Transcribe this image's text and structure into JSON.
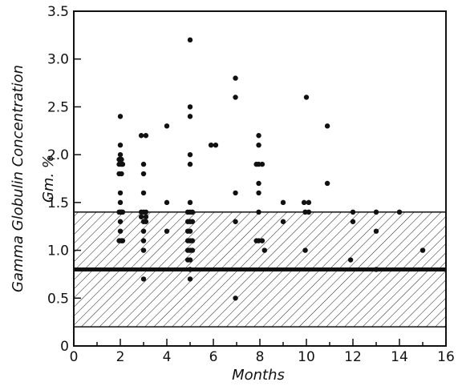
{
  "chart_data": {
    "type": "scatter",
    "xlabel": "Months",
    "ylabel": "Gamma Globulin Concentration",
    "ylabel_unit": "Gm. %",
    "xlim": [
      0,
      16
    ],
    "ylim": [
      0,
      3.5
    ],
    "x_ticks": [
      "0",
      "2",
      "4",
      "6",
      "8",
      "10",
      "12",
      "14",
      "16"
    ],
    "y_ticks": [
      "0",
      "0.5",
      "1.0",
      "1.5",
      "2.0",
      "2.5",
      "3.0",
      "3.5"
    ],
    "x_minor_step": 1,
    "grid": false,
    "normal_range": {
      "low": 0.2,
      "high": 1.4,
      "fill": "diagonal-hatch"
    },
    "mean_line": 0.8,
    "colors": {
      "ink": "#111111",
      "background": "#ffffff"
    },
    "series": [
      {
        "points": [
          [
            1.95,
            1.95
          ],
          [
            1.95,
            1.9
          ],
          [
            1.95,
            1.8
          ],
          [
            1.95,
            1.4
          ],
          [
            1.95,
            1.1
          ],
          [
            2.0,
            2.4
          ],
          [
            2.0,
            2.1
          ],
          [
            2.0,
            2.0
          ],
          [
            2.0,
            1.6
          ],
          [
            2.0,
            1.5
          ],
          [
            2.0,
            1.4
          ],
          [
            2.0,
            1.3
          ],
          [
            2.0,
            1.2
          ],
          [
            2.05,
            1.95
          ],
          [
            2.05,
            1.9
          ],
          [
            2.05,
            1.8
          ],
          [
            2.05,
            1.4
          ],
          [
            2.05,
            1.1
          ],
          [
            2.1,
            1.9
          ],
          [
            2.1,
            1.4
          ],
          [
            2.1,
            1.1
          ],
          [
            2.9,
            2.2
          ],
          [
            2.9,
            1.4
          ],
          [
            2.9,
            1.35
          ],
          [
            3.0,
            1.9
          ],
          [
            3.0,
            1.8
          ],
          [
            3.0,
            1.6
          ],
          [
            3.0,
            1.4
          ],
          [
            3.0,
            1.3
          ],
          [
            3.0,
            1.2
          ],
          [
            3.0,
            1.1
          ],
          [
            3.0,
            1.0
          ],
          [
            3.0,
            0.7
          ],
          [
            3.1,
            2.2
          ],
          [
            3.1,
            1.4
          ],
          [
            3.1,
            1.35
          ],
          [
            3.1,
            1.3
          ],
          [
            4.0,
            2.3
          ],
          [
            4.0,
            1.5
          ],
          [
            4.0,
            1.2
          ],
          [
            4.9,
            1.4
          ],
          [
            4.9,
            1.3
          ],
          [
            4.9,
            1.2
          ],
          [
            4.9,
            1.1
          ],
          [
            4.9,
            1.0
          ],
          [
            4.9,
            0.9
          ],
          [
            5.0,
            3.2
          ],
          [
            5.0,
            2.5
          ],
          [
            5.0,
            2.4
          ],
          [
            5.0,
            2.0
          ],
          [
            5.0,
            1.9
          ],
          [
            5.0,
            1.5
          ],
          [
            5.0,
            1.4
          ],
          [
            5.0,
            1.3
          ],
          [
            5.0,
            1.2
          ],
          [
            5.0,
            1.1
          ],
          [
            5.0,
            1.0
          ],
          [
            5.0,
            0.9
          ],
          [
            5.0,
            0.8
          ],
          [
            5.0,
            0.7
          ],
          [
            5.1,
            1.4
          ],
          [
            5.1,
            1.3
          ],
          [
            5.1,
            1.1
          ],
          [
            5.1,
            1.0
          ],
          [
            5.9,
            2.1
          ],
          [
            6.1,
            2.1
          ],
          [
            6.95,
            2.8
          ],
          [
            6.95,
            2.6
          ],
          [
            6.95,
            1.6
          ],
          [
            6.95,
            1.3
          ],
          [
            6.95,
            0.5
          ],
          [
            7.95,
            2.2
          ],
          [
            7.95,
            2.1
          ],
          [
            7.95,
            1.9
          ],
          [
            7.95,
            1.7
          ],
          [
            7.95,
            1.6
          ],
          [
            7.95,
            1.4
          ],
          [
            7.95,
            1.1
          ],
          [
            7.85,
            1.9
          ],
          [
            7.85,
            1.1
          ],
          [
            8.1,
            1.9
          ],
          [
            8.1,
            1.1
          ],
          [
            8.2,
            1.0
          ],
          [
            9.0,
            1.5
          ],
          [
            9.0,
            1.3
          ],
          [
            9.9,
            1.5
          ],
          [
            9.95,
            1.4
          ],
          [
            9.95,
            1.0
          ],
          [
            10.0,
            2.6
          ],
          [
            10.1,
            1.5
          ],
          [
            10.1,
            1.4
          ],
          [
            10.9,
            2.3
          ],
          [
            10.9,
            1.7
          ],
          [
            12.0,
            1.4
          ],
          [
            12.0,
            1.3
          ],
          [
            11.9,
            0.9
          ],
          [
            13.0,
            1.4
          ],
          [
            13.0,
            1.2
          ],
          [
            13.0,
            0.8
          ],
          [
            14.0,
            1.4
          ],
          [
            15.0,
            1.0
          ]
        ]
      }
    ]
  }
}
